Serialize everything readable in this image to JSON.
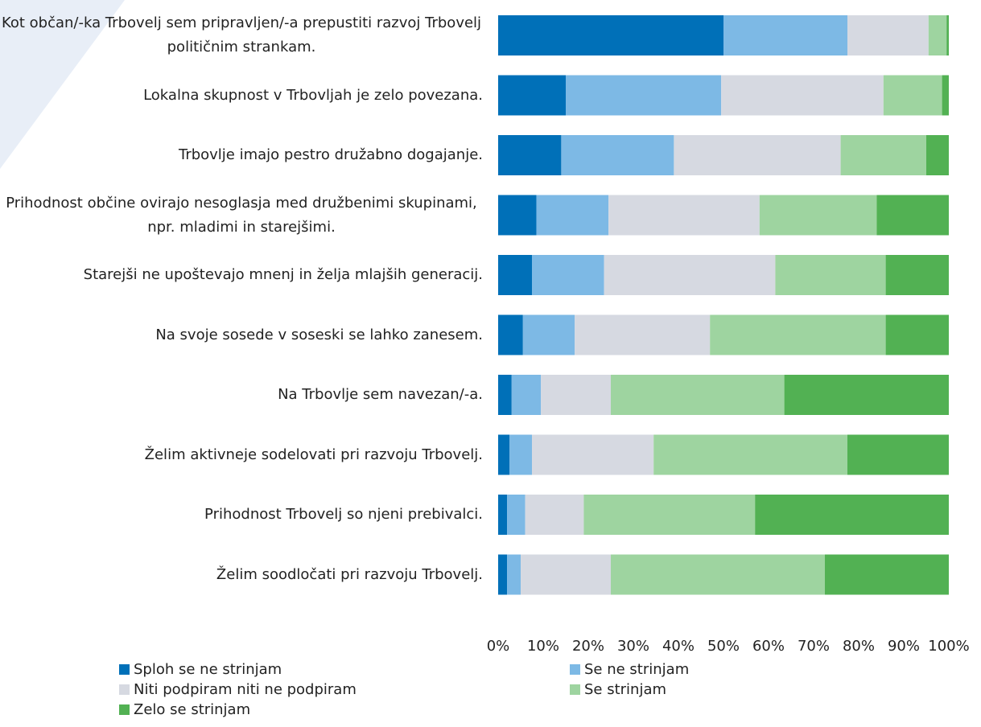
{
  "chart_data": {
    "type": "stacked_bar_horizontal",
    "categories": [
      "Kot občan/-ka Trbovelj sem pripravljen/-a prepustiti razvoj Trbovelj političnim strankam.",
      "Lokalna skupnost v Trbovljah je zelo povezana.",
      "Trbovlje imajo pestro družabno dogajanje.",
      "Prihodnost občine ovirajo nesoglasja med družbenimi skupinami, npr. mladimi in starejšimi.",
      "Starejši ne upoštevajo mnenj in želja mlajših generacij.",
      "Na svoje sosede v soseski se lahko zanesem.",
      "Na Trbovlje sem navezan/-a.",
      "Želim aktivneje sodelovati pri razvoju Trbovelj.",
      "Prihodnost Trbovelj so njeni prebivalci.",
      "Želim soodločati pri razvoju Trbovelj."
    ],
    "series": [
      {
        "name": "Sploh se ne strinjam",
        "color": "#0070b8",
        "values": [
          50,
          15,
          14,
          8.5,
          7.5,
          5.5,
          3,
          2.5,
          2,
          2
        ]
      },
      {
        "name": "Se ne strinjam",
        "color": "#7db9e5",
        "values": [
          27.5,
          34.5,
          25,
          16,
          16,
          11.5,
          6.5,
          5,
          4,
          3
        ]
      },
      {
        "name": "Niti podpiram niti ne podpiram",
        "color": "#d6d9e1",
        "values": [
          18,
          36,
          37,
          33.5,
          38,
          30,
          15.5,
          27,
          13,
          20
        ]
      },
      {
        "name": "Se strinjam",
        "color": "#9ed4a0",
        "values": [
          4,
          13,
          19,
          26,
          24.5,
          39,
          38.5,
          43,
          38,
          47.5
        ]
      },
      {
        "name": "Zelo se strinjam",
        "color": "#52b153",
        "values": [
          0.5,
          1.5,
          5,
          16,
          14,
          14,
          36.5,
          22.5,
          43,
          27.5
        ]
      }
    ],
    "xlim": [
      0,
      100
    ],
    "xticks": [
      {
        "value": 0,
        "label": "0%"
      },
      {
        "value": 10,
        "label": "10%"
      },
      {
        "value": 20,
        "label": "20%"
      },
      {
        "value": 30,
        "label": "30%"
      },
      {
        "value": 40,
        "label": "40%"
      },
      {
        "value": 50,
        "label": "50%"
      },
      {
        "value": 60,
        "label": "60%"
      },
      {
        "value": 70,
        "label": "70%"
      },
      {
        "value": 80,
        "label": "80%"
      },
      {
        "value": 90,
        "label": "90%"
      },
      {
        "value": 100,
        "label": "100%"
      }
    ]
  }
}
